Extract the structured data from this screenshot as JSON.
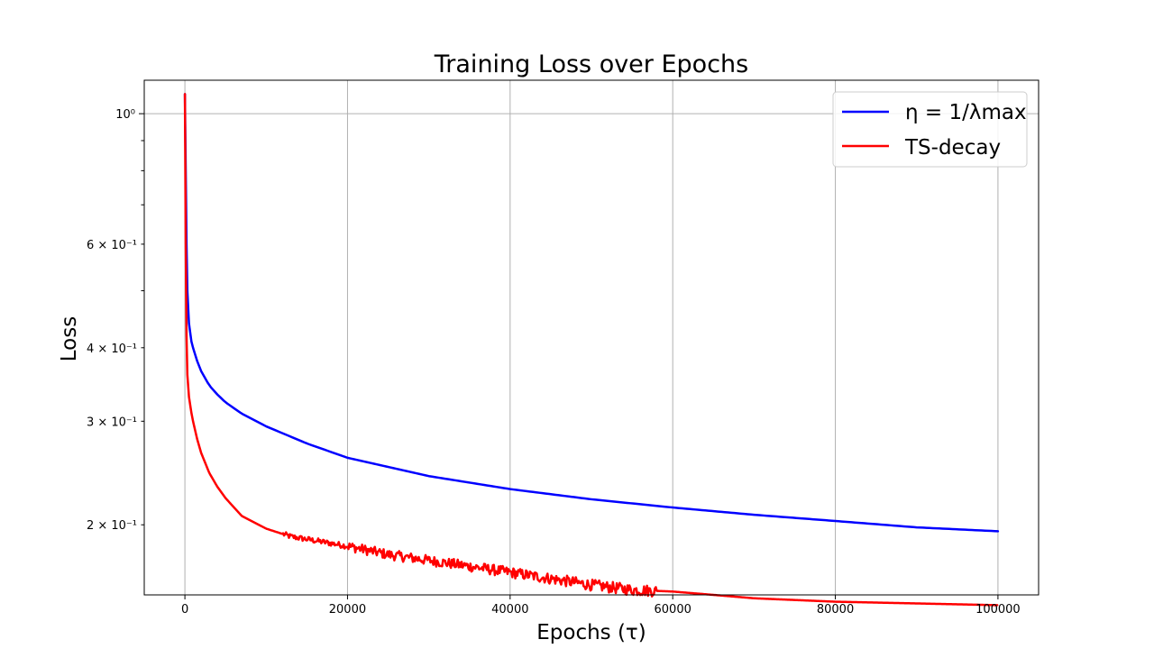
{
  "chart_data": {
    "type": "line",
    "title": "Training Loss over Epochs",
    "xlabel": "Epochs (τ)",
    "ylabel": "Loss",
    "xlim": [
      -5000,
      105000
    ],
    "ylim": [
      0.152,
      1.14
    ],
    "yscale": "log",
    "grid": true,
    "legend_position": "top-right",
    "x_ticks": [
      0,
      20000,
      40000,
      60000,
      80000,
      100000
    ],
    "x_tick_labels": [
      "0",
      "20000",
      "40000",
      "60000",
      "80000",
      "100000"
    ],
    "y_major_ticks": [
      1.0
    ],
    "y_major_tick_labels": [
      "10⁰"
    ],
    "y_minor_ticks": [
      0.2,
      0.3,
      0.4,
      0.5,
      0.6,
      0.7,
      0.8,
      0.9
    ],
    "y_minor_tick_labels": [
      {
        "value": 0.6,
        "label": "6 × 10⁻¹"
      },
      {
        "value": 0.4,
        "label": "4 × 10⁻¹"
      },
      {
        "value": 0.3,
        "label": "3 × 10⁻¹"
      },
      {
        "value": 0.2,
        "label": "2 × 10⁻¹"
      }
    ],
    "series": [
      {
        "name": "η = 1/λmax",
        "color": "#0000ff",
        "x": [
          0,
          100,
          200,
          300,
          500,
          800,
          1000,
          1500,
          2000,
          3000,
          4000,
          5000,
          7000,
          10000,
          15000,
          20000,
          30000,
          40000,
          50000,
          60000,
          70000,
          80000,
          90000,
          100000
        ],
        "y": [
          1.08,
          0.8,
          0.6,
          0.5,
          0.44,
          0.41,
          0.4,
          0.38,
          0.365,
          0.345,
          0.333,
          0.323,
          0.309,
          0.294,
          0.275,
          0.26,
          0.242,
          0.23,
          0.221,
          0.214,
          0.208,
          0.203,
          0.198,
          0.195
        ]
      },
      {
        "name": "TS-decay",
        "color": "#ff0000",
        "noise_amplitude": 0.0035,
        "x": [
          0,
          100,
          200,
          300,
          500,
          800,
          1000,
          1500,
          2000,
          3000,
          4000,
          5000,
          7000,
          10000,
          13000,
          15000,
          20000,
          25000,
          30000,
          35000,
          40000,
          45000,
          50000,
          55000,
          60000,
          65000,
          70000,
          80000,
          90000,
          100000
        ],
        "y": [
          1.08,
          0.6,
          0.42,
          0.36,
          0.33,
          0.31,
          0.3,
          0.28,
          0.265,
          0.245,
          0.232,
          0.222,
          0.207,
          0.197,
          0.191,
          0.189,
          0.184,
          0.178,
          0.174,
          0.17,
          0.166,
          0.162,
          0.158,
          0.155,
          0.154,
          0.152,
          0.15,
          0.148,
          0.147,
          0.146
        ]
      }
    ]
  }
}
